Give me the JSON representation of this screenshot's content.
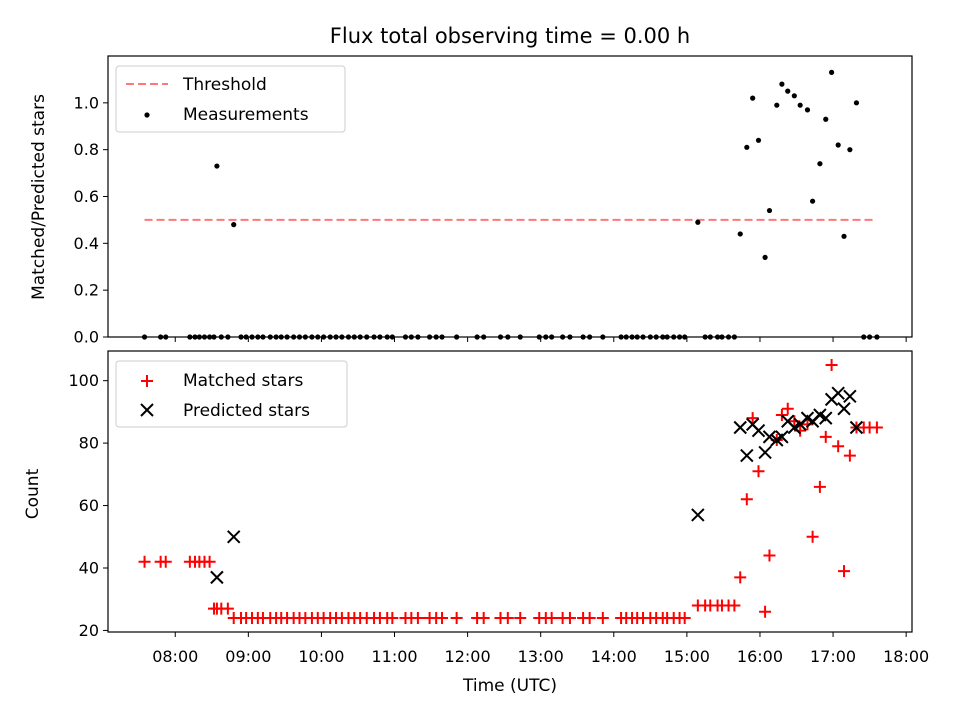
{
  "chart_data": {
    "type": "scatter",
    "title": "Flux total observing time = 0.00 h",
    "xlabel": "Time (UTC)",
    "x_tick_labels": [
      "08:00",
      "09:00",
      "10:00",
      "11:00",
      "12:00",
      "13:00",
      "14:00",
      "15:00",
      "16:00",
      "17:00",
      "18:00"
    ],
    "x_ticks_hours": [
      8,
      9,
      10,
      11,
      12,
      13,
      14,
      15,
      16,
      17,
      18
    ],
    "xlim": [
      7.08,
      18.08
    ],
    "panels": [
      {
        "name": "ratio",
        "ylabel": "Matched/Predicted stars",
        "ylim": [
          0,
          1.2
        ],
        "y_ticks": [
          0.0,
          0.2,
          0.4,
          0.6,
          0.8,
          1.0
        ],
        "y_tick_labels": [
          "0.0",
          "0.2",
          "0.4",
          "0.6",
          "0.8",
          "1.0"
        ],
        "legend": [
          "Threshold",
          "Measurements"
        ],
        "threshold": {
          "name": "Threshold",
          "value": 0.5,
          "x_range": [
            7.58,
            17.58
          ],
          "color": "#ff7777"
        },
        "measurements": {
          "name": "Measurements",
          "color": "#000000",
          "points": [
            [
              7.58,
              0
            ],
            [
              7.8,
              0
            ],
            [
              7.87,
              0
            ],
            [
              8.2,
              0
            ],
            [
              8.27,
              0
            ],
            [
              8.33,
              0
            ],
            [
              8.4,
              0
            ],
            [
              8.47,
              0
            ],
            [
              8.53,
              0
            ],
            [
              8.57,
              0.73
            ],
            [
              8.63,
              0
            ],
            [
              8.72,
              0
            ],
            [
              8.8,
              0.48
            ],
            [
              8.9,
              0
            ],
            [
              8.97,
              0
            ],
            [
              9.05,
              0
            ],
            [
              9.13,
              0
            ],
            [
              9.2,
              0
            ],
            [
              9.3,
              0
            ],
            [
              9.38,
              0
            ],
            [
              9.45,
              0
            ],
            [
              9.53,
              0
            ],
            [
              9.62,
              0
            ],
            [
              9.7,
              0
            ],
            [
              9.78,
              0
            ],
            [
              9.87,
              0
            ],
            [
              9.95,
              0
            ],
            [
              10.03,
              0
            ],
            [
              10.12,
              0
            ],
            [
              10.2,
              0
            ],
            [
              10.28,
              0
            ],
            [
              10.37,
              0
            ],
            [
              10.45,
              0
            ],
            [
              10.53,
              0
            ],
            [
              10.62,
              0
            ],
            [
              10.72,
              0
            ],
            [
              10.8,
              0
            ],
            [
              10.9,
              0
            ],
            [
              10.97,
              0
            ],
            [
              11.15,
              0
            ],
            [
              11.23,
              0
            ],
            [
              11.32,
              0
            ],
            [
              11.48,
              0
            ],
            [
              11.57,
              0
            ],
            [
              11.65,
              0
            ],
            [
              11.85,
              0
            ],
            [
              12.13,
              0
            ],
            [
              12.22,
              0
            ],
            [
              12.45,
              0
            ],
            [
              12.55,
              0
            ],
            [
              12.72,
              0
            ],
            [
              12.98,
              0
            ],
            [
              13.07,
              0
            ],
            [
              13.15,
              0
            ],
            [
              13.3,
              0
            ],
            [
              13.4,
              0
            ],
            [
              13.58,
              0
            ],
            [
              13.67,
              0
            ],
            [
              13.85,
              0
            ],
            [
              14.1,
              0
            ],
            [
              14.17,
              0
            ],
            [
              14.25,
              0
            ],
            [
              14.32,
              0
            ],
            [
              14.4,
              0
            ],
            [
              14.5,
              0
            ],
            [
              14.58,
              0
            ],
            [
              14.67,
              0
            ],
            [
              14.73,
              0
            ],
            [
              14.82,
              0
            ],
            [
              14.9,
              0
            ],
            [
              14.97,
              0
            ],
            [
              15.15,
              0.49
            ],
            [
              15.25,
              0
            ],
            [
              15.32,
              0
            ],
            [
              15.42,
              0
            ],
            [
              15.48,
              0
            ],
            [
              15.57,
              0
            ],
            [
              15.65,
              0
            ],
            [
              15.73,
              0.44
            ],
            [
              15.82,
              0.81
            ],
            [
              15.9,
              1.02
            ],
            [
              15.98,
              0.84
            ],
            [
              16.07,
              0.34
            ],
            [
              16.13,
              0.54
            ],
            [
              16.23,
              0.99
            ],
            [
              16.3,
              1.08
            ],
            [
              16.38,
              1.05
            ],
            [
              16.47,
              1.03
            ],
            [
              16.55,
              0.99
            ],
            [
              16.65,
              0.97
            ],
            [
              16.72,
              0.58
            ],
            [
              16.82,
              0.74
            ],
            [
              16.9,
              0.93
            ],
            [
              16.98,
              1.13
            ],
            [
              17.07,
              0.82
            ],
            [
              17.15,
              0.43
            ],
            [
              17.23,
              0.8
            ],
            [
              17.32,
              1.0
            ],
            [
              17.42,
              0
            ],
            [
              17.5,
              0
            ],
            [
              17.6,
              0
            ]
          ]
        }
      },
      {
        "name": "counts",
        "ylabel": "Count",
        "ylim": [
          19.5,
          109.5
        ],
        "y_ticks": [
          20,
          40,
          60,
          80,
          100
        ],
        "y_tick_labels": [
          "20",
          "40",
          "60",
          "80",
          "100"
        ],
        "legend": [
          "Matched stars",
          "Predicted stars"
        ],
        "series": [
          {
            "name": "Matched stars",
            "marker": "plus",
            "color": "#ff0000",
            "points": [
              [
                7.58,
                42
              ],
              [
                7.8,
                42
              ],
              [
                7.87,
                42
              ],
              [
                8.2,
                42
              ],
              [
                8.27,
                42
              ],
              [
                8.33,
                42
              ],
              [
                8.4,
                42
              ],
              [
                8.47,
                42
              ],
              [
                8.53,
                27
              ],
              [
                8.57,
                27
              ],
              [
                8.63,
                27
              ],
              [
                8.72,
                27
              ],
              [
                8.8,
                24
              ],
              [
                8.9,
                24
              ],
              [
                8.97,
                24
              ],
              [
                9.05,
                24
              ],
              [
                9.13,
                24
              ],
              [
                9.2,
                24
              ],
              [
                9.3,
                24
              ],
              [
                9.38,
                24
              ],
              [
                9.45,
                24
              ],
              [
                9.53,
                24
              ],
              [
                9.62,
                24
              ],
              [
                9.7,
                24
              ],
              [
                9.78,
                24
              ],
              [
                9.87,
                24
              ],
              [
                9.95,
                24
              ],
              [
                10.03,
                24
              ],
              [
                10.12,
                24
              ],
              [
                10.2,
                24
              ],
              [
                10.28,
                24
              ],
              [
                10.37,
                24
              ],
              [
                10.45,
                24
              ],
              [
                10.53,
                24
              ],
              [
                10.62,
                24
              ],
              [
                10.72,
                24
              ],
              [
                10.8,
                24
              ],
              [
                10.9,
                24
              ],
              [
                10.97,
                24
              ],
              [
                11.15,
                24
              ],
              [
                11.23,
                24
              ],
              [
                11.32,
                24
              ],
              [
                11.48,
                24
              ],
              [
                11.57,
                24
              ],
              [
                11.65,
                24
              ],
              [
                11.85,
                24
              ],
              [
                12.13,
                24
              ],
              [
                12.22,
                24
              ],
              [
                12.45,
                24
              ],
              [
                12.55,
                24
              ],
              [
                12.72,
                24
              ],
              [
                12.98,
                24
              ],
              [
                13.07,
                24
              ],
              [
                13.15,
                24
              ],
              [
                13.3,
                24
              ],
              [
                13.4,
                24
              ],
              [
                13.58,
                24
              ],
              [
                13.67,
                24
              ],
              [
                13.85,
                24
              ],
              [
                14.1,
                24
              ],
              [
                14.17,
                24
              ],
              [
                14.25,
                24
              ],
              [
                14.32,
                24
              ],
              [
                14.4,
                24
              ],
              [
                14.5,
                24
              ],
              [
                14.58,
                24
              ],
              [
                14.67,
                24
              ],
              [
                14.73,
                24
              ],
              [
                14.82,
                24
              ],
              [
                14.9,
                24
              ],
              [
                14.97,
                24
              ],
              [
                15.15,
                28
              ],
              [
                15.25,
                28
              ],
              [
                15.32,
                28
              ],
              [
                15.42,
                28
              ],
              [
                15.48,
                28
              ],
              [
                15.57,
                28
              ],
              [
                15.65,
                28
              ],
              [
                15.73,
                37
              ],
              [
                15.82,
                62
              ],
              [
                15.9,
                88
              ],
              [
                15.98,
                71
              ],
              [
                16.07,
                26
              ],
              [
                16.13,
                44
              ],
              [
                16.23,
                81
              ],
              [
                16.3,
                89
              ],
              [
                16.38,
                91
              ],
              [
                16.47,
                87
              ],
              [
                16.55,
                84
              ],
              [
                16.65,
                86
              ],
              [
                16.72,
                50
              ],
              [
                16.82,
                66
              ],
              [
                16.9,
                82
              ],
              [
                16.98,
                105
              ],
              [
                17.07,
                79
              ],
              [
                17.15,
                39
              ],
              [
                17.23,
                76
              ],
              [
                17.32,
                85
              ],
              [
                17.42,
                85
              ],
              [
                17.5,
                85
              ],
              [
                17.6,
                85
              ]
            ]
          },
          {
            "name": "Predicted stars",
            "marker": "x",
            "color": "#000000",
            "points": [
              [
                8.57,
                37
              ],
              [
                8.8,
                50
              ],
              [
                15.15,
                57
              ],
              [
                15.73,
                85
              ],
              [
                15.82,
                76
              ],
              [
                15.9,
                86
              ],
              [
                15.98,
                84
              ],
              [
                16.07,
                77
              ],
              [
                16.13,
                82
              ],
              [
                16.23,
                81
              ],
              [
                16.3,
                82
              ],
              [
                16.38,
                87
              ],
              [
                16.47,
                85
              ],
              [
                16.55,
                86
              ],
              [
                16.65,
                88
              ],
              [
                16.72,
                87
              ],
              [
                16.82,
                89
              ],
              [
                16.9,
                88
              ],
              [
                16.98,
                94
              ],
              [
                17.07,
                96
              ],
              [
                17.15,
                91
              ],
              [
                17.23,
                95
              ],
              [
                17.32,
                85
              ]
            ]
          }
        ]
      }
    ]
  }
}
